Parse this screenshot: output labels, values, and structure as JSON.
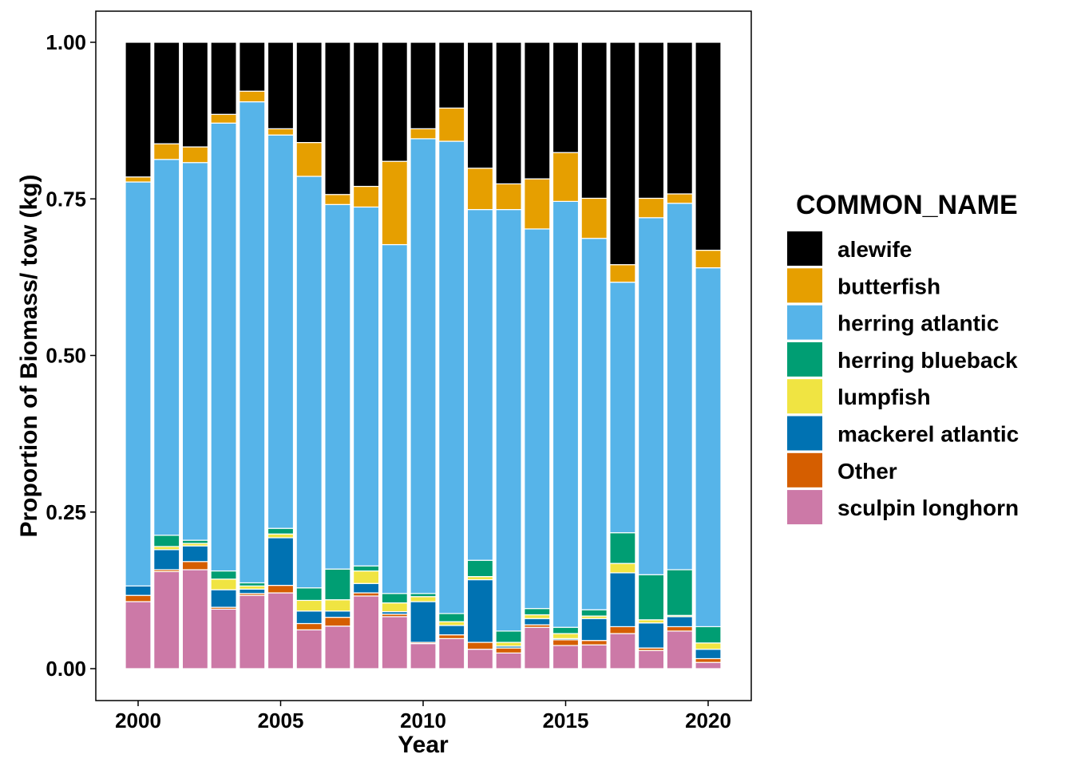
{
  "chart_data": {
    "type": "bar",
    "stacked": true,
    "xlabel": "Year",
    "ylabel": "Proportion of Biomass/ tow (kg)",
    "ylim": [
      0,
      1
    ],
    "yticks": [
      "0.00",
      "0.25",
      "0.50",
      "0.75",
      "1.00"
    ],
    "xticks": [
      "2000",
      "2005",
      "2010",
      "2015",
      "2020"
    ],
    "legend": {
      "title": "COMMON_NAME",
      "position": "right"
    },
    "categories": [
      2000,
      2001,
      2002,
      2003,
      2004,
      2005,
      2006,
      2007,
      2008,
      2009,
      2010,
      2011,
      2012,
      2013,
      2014,
      2015,
      2016,
      2017,
      2018,
      2019,
      2020
    ],
    "series": [
      {
        "name": "sculpin longhorn",
        "color": "#CC79A7",
        "values": [
          0.107,
          0.155,
          0.158,
          0.095,
          0.117,
          0.121,
          0.062,
          0.068,
          0.116,
          0.083,
          0.04,
          0.048,
          0.031,
          0.025,
          0.066,
          0.037,
          0.038,
          0.056,
          0.029,
          0.06,
          0.01
        ]
      },
      {
        "name": "Other",
        "color": "#D55E00",
        "values": [
          0.01,
          0.003,
          0.013,
          0.003,
          0.003,
          0.012,
          0.01,
          0.014,
          0.005,
          0.004,
          0.002,
          0.006,
          0.011,
          0.008,
          0.004,
          0.009,
          0.007,
          0.011,
          0.004,
          0.007,
          0.006
        ]
      },
      {
        "name": "mackerel atlantic",
        "color": "#0072B2",
        "values": [
          0.015,
          0.032,
          0.025,
          0.028,
          0.007,
          0.076,
          0.02,
          0.01,
          0.015,
          0.004,
          0.065,
          0.015,
          0.1,
          0.003,
          0.01,
          0.002,
          0.035,
          0.086,
          0.04,
          0.016,
          0.015
        ]
      },
      {
        "name": "lumpfish",
        "color": "#F0E442",
        "values": [
          0.0,
          0.005,
          0.004,
          0.017,
          0.005,
          0.006,
          0.017,
          0.018,
          0.02,
          0.014,
          0.008,
          0.006,
          0.005,
          0.006,
          0.006,
          0.008,
          0.004,
          0.015,
          0.005,
          0.002,
          0.01
        ]
      },
      {
        "name": "herring blueback",
        "color": "#009E73",
        "values": [
          0.0,
          0.018,
          0.005,
          0.013,
          0.005,
          0.009,
          0.02,
          0.049,
          0.008,
          0.015,
          0.005,
          0.013,
          0.026,
          0.018,
          0.01,
          0.01,
          0.01,
          0.049,
          0.072,
          0.073,
          0.026
        ]
      },
      {
        "name": "herring atlantic",
        "color": "#56B4E9",
        "values": [
          0.645,
          0.6,
          0.603,
          0.715,
          0.768,
          0.628,
          0.657,
          0.582,
          0.573,
          0.557,
          0.726,
          0.754,
          0.56,
          0.673,
          0.606,
          0.68,
          0.593,
          0.4,
          0.57,
          0.585,
          0.573
        ]
      },
      {
        "name": "butterfish",
        "color": "#E69F00",
        "values": [
          0.008,
          0.025,
          0.025,
          0.014,
          0.017,
          0.01,
          0.054,
          0.016,
          0.033,
          0.133,
          0.016,
          0.053,
          0.066,
          0.041,
          0.08,
          0.078,
          0.064,
          0.028,
          0.031,
          0.015,
          0.028
        ]
      },
      {
        "name": "alewife",
        "color": "#000000",
        "values": [
          0.215,
          0.162,
          0.167,
          0.115,
          0.078,
          0.138,
          0.16,
          0.243,
          0.23,
          0.19,
          0.138,
          0.105,
          0.201,
          0.226,
          0.218,
          0.176,
          0.249,
          0.355,
          0.249,
          0.242,
          0.332
        ]
      }
    ],
    "legend_order": [
      "alewife",
      "butterfish",
      "herring atlantic",
      "herring blueback",
      "lumpfish",
      "mackerel atlantic",
      "Other",
      "sculpin longhorn"
    ]
  }
}
